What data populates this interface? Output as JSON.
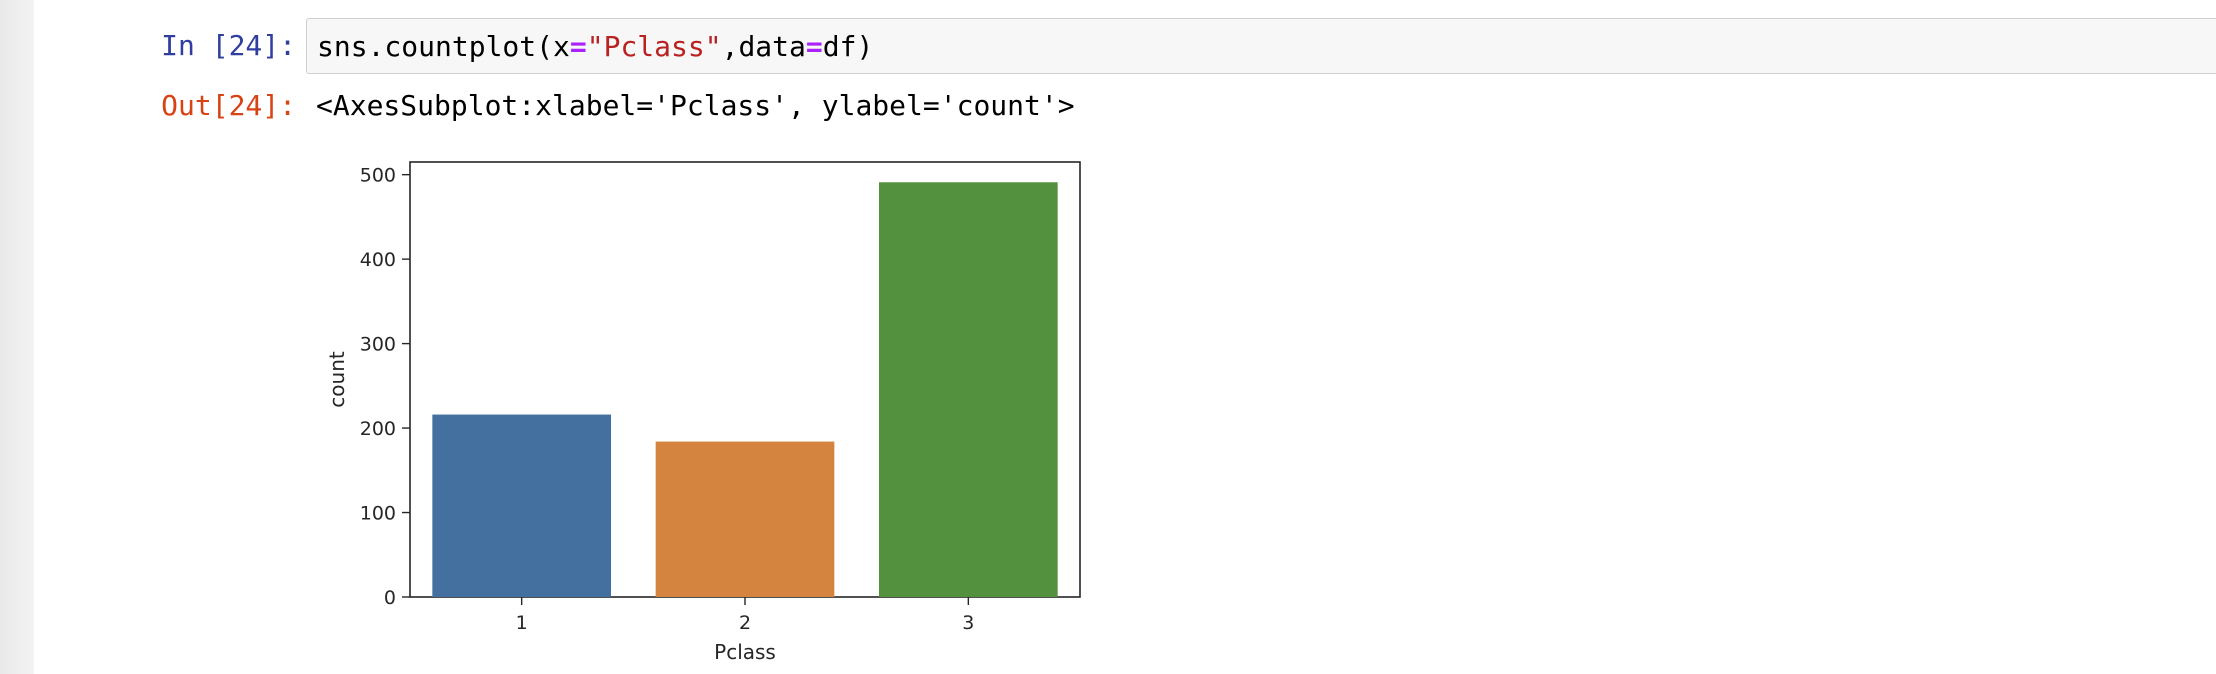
{
  "cell": {
    "input_prompt": "In [24]:",
    "output_prompt": "Out[24]:",
    "code": {
      "func": "sns.countplot(x",
      "eq1": "=",
      "arg_str": "\"Pclass\"",
      "mid": ",data",
      "eq2": "=",
      "tail": "df)"
    },
    "output_repr": "<AxesSubplot:xlabel='Pclass', ylabel='count'>"
  },
  "chart_data": {
    "type": "bar",
    "categories": [
      "1",
      "2",
      "3"
    ],
    "values": [
      216,
      184,
      491
    ],
    "colors": [
      "#4470a0",
      "#d5843f",
      "#54913f"
    ],
    "xlabel": "Pclass",
    "ylabel": "count",
    "ylim": [
      0,
      515
    ],
    "yticks": [
      "0",
      "100",
      "200",
      "300",
      "400",
      "500"
    ]
  }
}
